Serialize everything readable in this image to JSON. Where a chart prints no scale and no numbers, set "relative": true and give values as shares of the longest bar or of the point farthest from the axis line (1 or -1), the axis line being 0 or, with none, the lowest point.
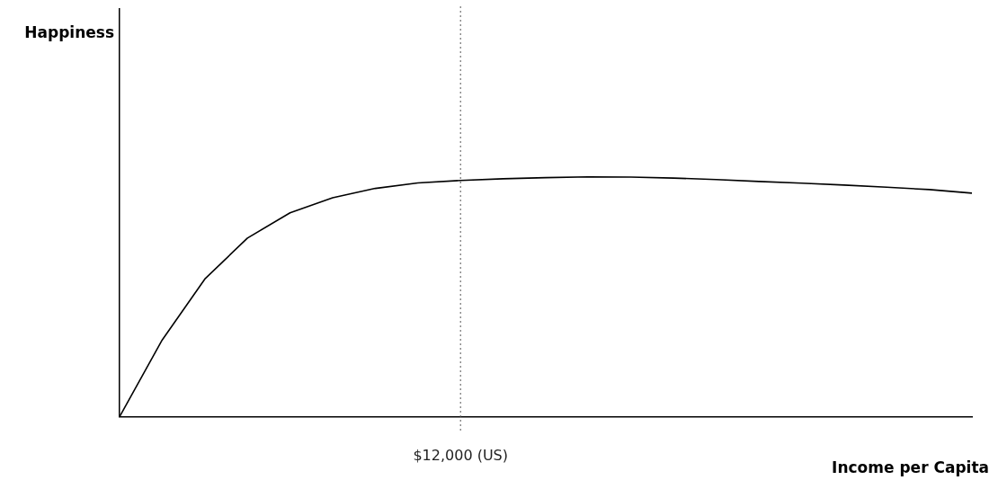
{
  "chart_data": {
    "type": "line",
    "relative": true,
    "xlabel": "Income per Capita",
    "categories": [
      null,
      null,
      null,
      null,
      null,
      null,
      null,
      null,
      null,
      null,
      null,
      null,
      null,
      null,
      null,
      null,
      null,
      null,
      null,
      null,
      null
    ],
    "series": [
      {
        "color": "#000000",
        "values": [
          0,
          0.32,
          0.574,
          0.745,
          0.85,
          0.913,
          0.952,
          0.975,
          0.985,
          0.992,
          0.997,
          1,
          0.999,
          0.995,
          0.989,
          0.981,
          0.974,
          0.966,
          0.957,
          0.947,
          0.932
        ]
      }
    ],
    "annotations": [
      "$12,000 (US)",
      "Happiness"
    ],
    "grid": false,
    "legend": false,
    "marker": "none",
    "line_style": "solid"
  }
}
